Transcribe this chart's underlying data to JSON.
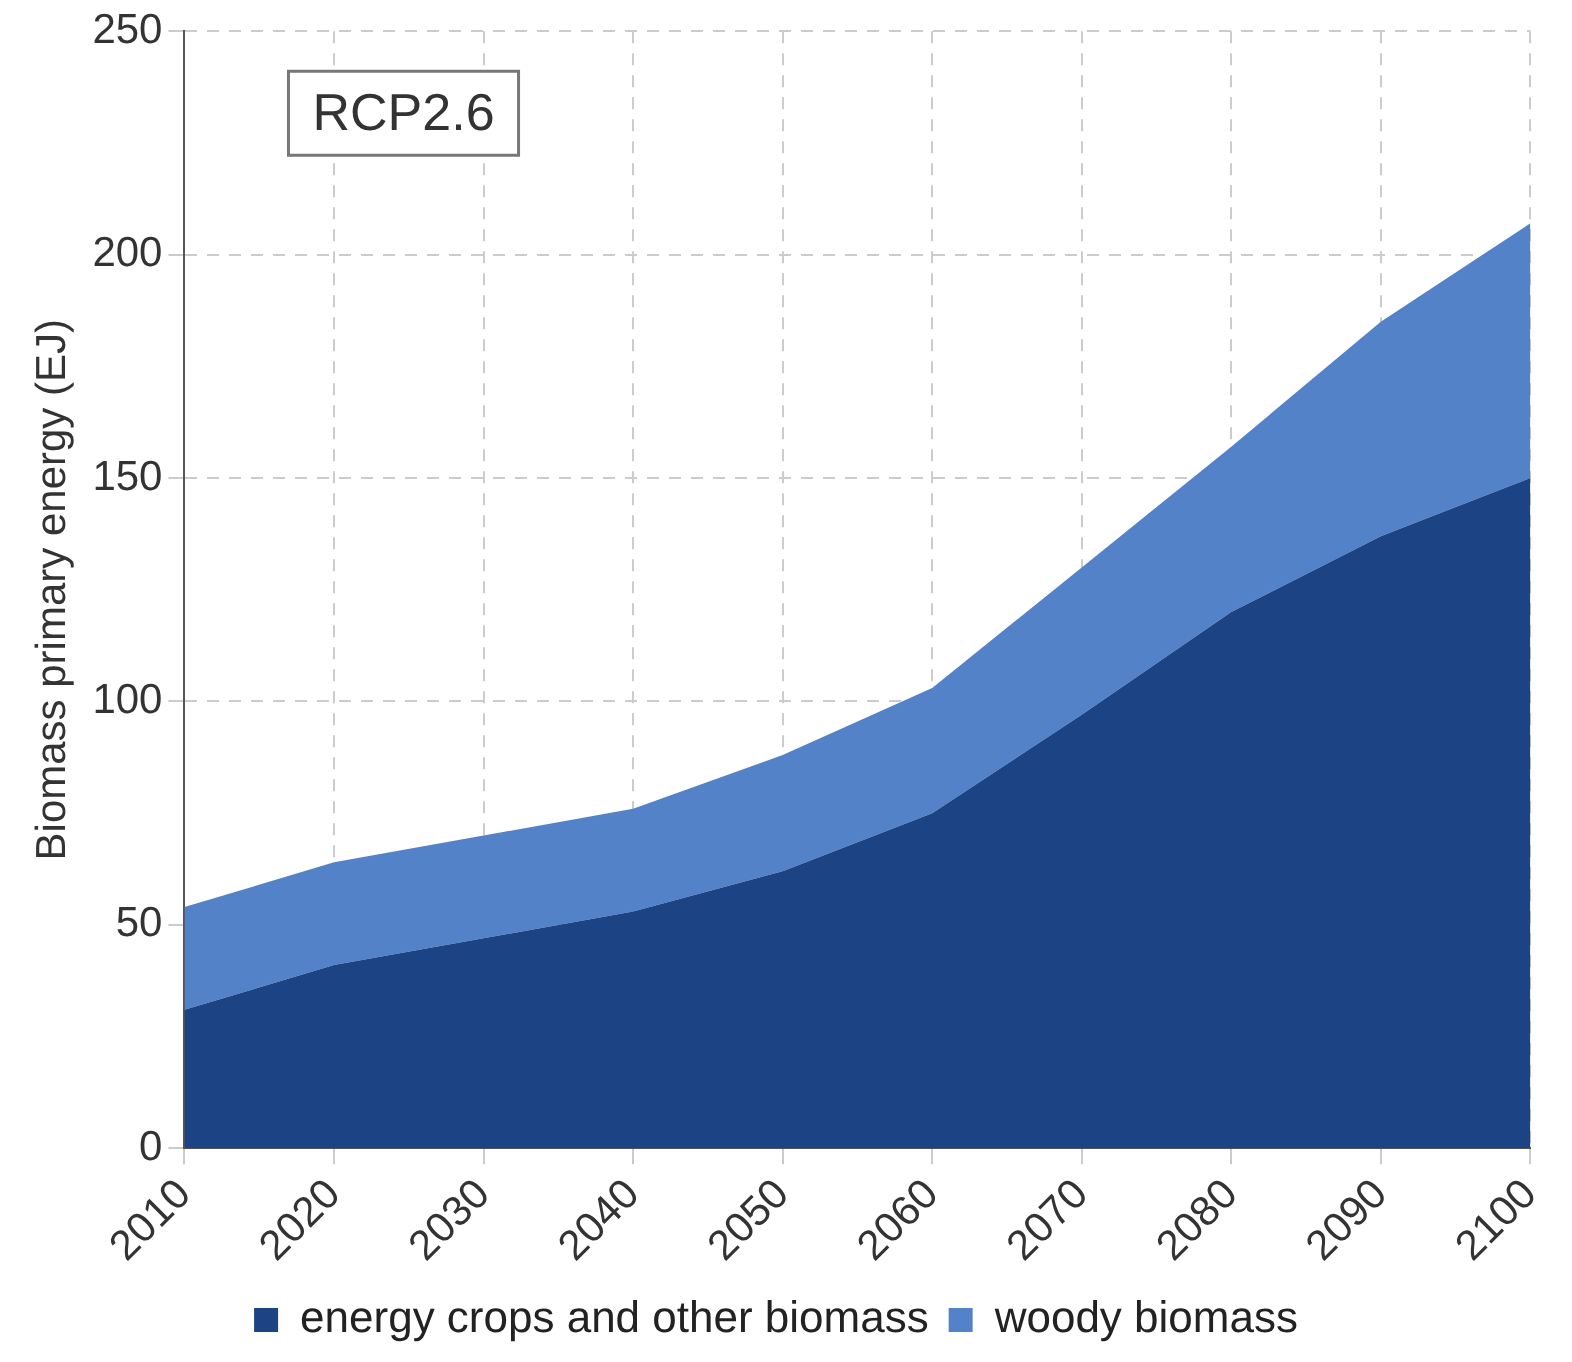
{
  "chart_data": {
    "type": "area",
    "stacked": true,
    "ylabel": "Biomass primary energy (EJ)",
    "annotations": [
      "RCP2.6"
    ],
    "categories": [
      "2010",
      "2020",
      "2030",
      "2040",
      "2050",
      "2060",
      "2070",
      "2080",
      "2090",
      "2100"
    ],
    "series": [
      {
        "name": "energy crops and other biomass",
        "color": "#1c4484",
        "values": [
          31,
          41,
          47,
          53,
          62,
          75,
          97,
          120,
          137,
          150
        ]
      },
      {
        "name": "woody biomass",
        "color": "#5482c8",
        "values": [
          23,
          23,
          23,
          23,
          26,
          28,
          33,
          37,
          48,
          57
        ]
      }
    ],
    "ylim": [
      0,
      250
    ],
    "yticks": [
      0,
      50,
      100,
      150,
      200,
      250
    ],
    "grid": true,
    "legend": "bottom"
  }
}
